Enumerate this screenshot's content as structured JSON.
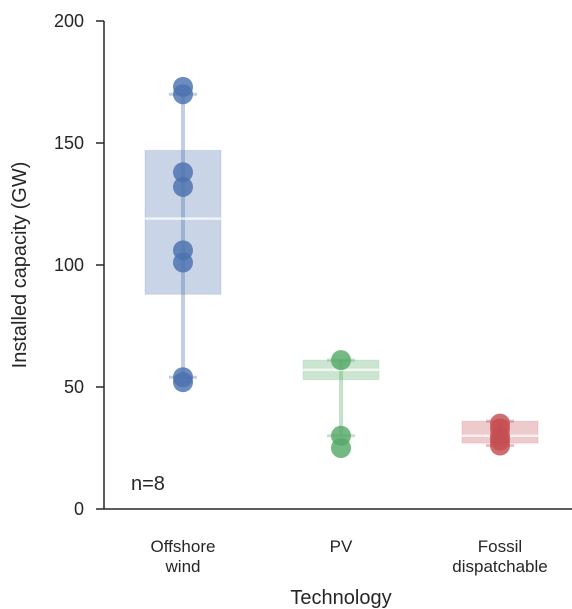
{
  "chart_data": {
    "type": "box-strip",
    "xlabel": "Technology",
    "ylabel": "Installed capacity (GW)",
    "ylim": [
      0,
      200
    ],
    "yticks": [
      "0",
      "50",
      "100",
      "150",
      "200"
    ],
    "annotation": "n=8",
    "grid": false,
    "categories": [
      {
        "label_lines": [
          "Offshore",
          "wind"
        ],
        "color": "#4c72b0",
        "box": {
          "whisker_low": 54,
          "q1": 88,
          "median": 119,
          "q3": 147,
          "whisker_high": 170
        },
        "points": [
          173,
          170,
          138,
          132,
          106,
          101,
          54,
          52
        ]
      },
      {
        "label_lines": [
          "PV"
        ],
        "color": "#55a868",
        "box": {
          "whisker_low": 30,
          "q1": 53,
          "median": 57,
          "q3": 61,
          "whisker_high": 61
        },
        "points": [
          61,
          30,
          25
        ]
      },
      {
        "label_lines": [
          "Fossil",
          "dispatchable"
        ],
        "color": "#c44e52",
        "box": {
          "whisker_low": 26,
          "q1": 27,
          "median": 30,
          "q3": 36,
          "whisker_high": 36
        },
        "points": [
          35,
          33,
          30,
          28,
          26
        ]
      }
    ]
  }
}
